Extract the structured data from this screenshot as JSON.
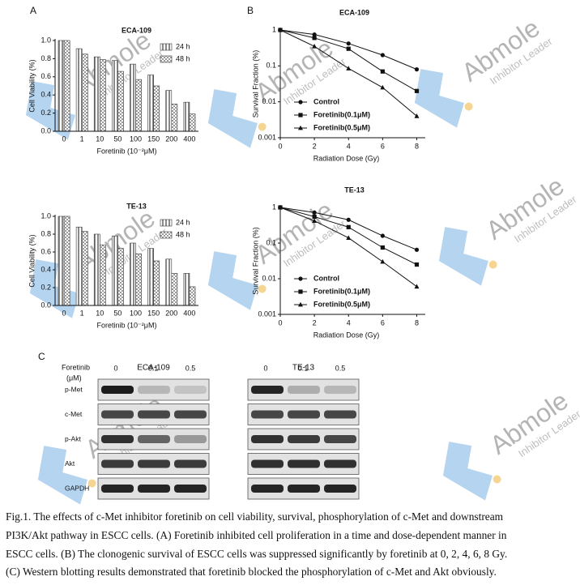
{
  "panels": [
    "A",
    "B",
    "C"
  ],
  "chart_data": [
    {
      "type": "bar",
      "title": "ECA-109",
      "x_label": "Foretinib (10⁻²μM)",
      "y_label": "Cell Viability (%)",
      "categories": [
        "0",
        "1",
        "10",
        "50",
        "100",
        "150",
        "200",
        "400"
      ],
      "series": [
        {
          "name": "24 h",
          "color": "#8a8a8a",
          "pattern": "stripes",
          "values": [
            1.0,
            0.91,
            0.82,
            0.78,
            0.74,
            0.62,
            0.45,
            0.32
          ]
        },
        {
          "name": "48 h",
          "color": "#9a9a9a",
          "pattern": "checks",
          "values": [
            1.0,
            0.85,
            0.79,
            0.66,
            0.57,
            0.5,
            0.3,
            0.19
          ]
        }
      ],
      "ylim": [
        0,
        1.0
      ],
      "yticks": [
        {
          "value": 0,
          "label": "0.0"
        },
        {
          "value": 0.2,
          "label": "0.2"
        },
        {
          "value": 0.4,
          "label": "0.4"
        },
        {
          "value": 0.6,
          "label": "0.6"
        },
        {
          "value": 0.8,
          "label": "0.8"
        },
        {
          "value": 1.0,
          "label": "1.0"
        }
      ],
      "legend": "top-right"
    },
    {
      "type": "line",
      "title": "ECA-109",
      "x_label": "Radiation Dose (Gy)",
      "y_label": "Survival Fraction (%)",
      "x": [
        0,
        2,
        4,
        6,
        8
      ],
      "xlim": [
        0,
        8.5
      ],
      "xticks": [
        0,
        2,
        4,
        6,
        8
      ],
      "ylim": [
        0.001,
        1
      ],
      "yticks": [
        0.001,
        0.01,
        0.1,
        1
      ],
      "log_y": true,
      "series": [
        {
          "name": "Control",
          "color": "#111111",
          "marker": "circle",
          "values": [
            1,
            0.75,
            0.42,
            0.2,
            0.08
          ]
        },
        {
          "name": "Foretinib(0.1μM)",
          "color": "#111111",
          "marker": "square",
          "values": [
            1,
            0.6,
            0.3,
            0.07,
            0.02
          ]
        },
        {
          "name": "Foretinib(0.5μM)",
          "color": "#111111",
          "marker": "triangle",
          "values": [
            1,
            0.35,
            0.085,
            0.025,
            0.004
          ]
        }
      ],
      "legend": "bottom-left"
    },
    {
      "type": "bar",
      "title": "TE-13",
      "x_label": "Foretinib (10⁻²μM)",
      "y_label": "Cell Viability (%)",
      "categories": [
        "0",
        "1",
        "10",
        "50",
        "100",
        "150",
        "200",
        "400"
      ],
      "series": [
        {
          "name": "24 h",
          "color": "#8a8a8a",
          "pattern": "stripes",
          "values": [
            1.0,
            0.88,
            0.8,
            0.78,
            0.7,
            0.64,
            0.52,
            0.36
          ]
        },
        {
          "name": "48 h",
          "color": "#9a9a9a",
          "pattern": "checks",
          "values": [
            1.0,
            0.83,
            0.68,
            0.64,
            0.58,
            0.5,
            0.36,
            0.21
          ]
        }
      ],
      "ylim": [
        0,
        1.0
      ],
      "yticks": [
        {
          "value": 0,
          "label": "0.0"
        },
        {
          "value": 0.2,
          "label": "0.2"
        },
        {
          "value": 0.4,
          "label": "0.4"
        },
        {
          "value": 0.6,
          "label": "0.6"
        },
        {
          "value": 0.8,
          "label": "0.8"
        },
        {
          "value": 1.0,
          "label": "1.0"
        }
      ],
      "legend": "top-right"
    },
    {
      "type": "line",
      "title": "TE-13",
      "x_label": "Radiation Dose (Gy)",
      "y_label": "Survival Fraction (%)",
      "x": [
        0,
        2,
        4,
        6,
        8
      ],
      "xlim": [
        0,
        8.5
      ],
      "xticks": [
        0,
        2,
        4,
        6,
        8
      ],
      "ylim": [
        0.001,
        1
      ],
      "yticks": [
        0.001,
        0.01,
        0.1,
        1
      ],
      "log_y": true,
      "series": [
        {
          "name": "Control",
          "color": "#111111",
          "marker": "circle",
          "values": [
            1,
            0.72,
            0.45,
            0.16,
            0.065
          ]
        },
        {
          "name": "Foretinib(0.1μM)",
          "color": "#111111",
          "marker": "square",
          "values": [
            1,
            0.55,
            0.28,
            0.075,
            0.025
          ]
        },
        {
          "name": "Foretinib(0.5μM)",
          "color": "#111111",
          "marker": "triangle",
          "values": [
            1,
            0.42,
            0.14,
            0.03,
            0.006
          ]
        }
      ],
      "legend": "bottom-left"
    }
  ],
  "blot": {
    "header": [
      "Foretinib",
      "(μM)"
    ],
    "cell_lines": [
      "ECA-109",
      "TE-13"
    ],
    "doses": [
      "0",
      "0.1",
      "0.5"
    ],
    "proteins": [
      "p-Met",
      "c-Met",
      "p-Akt",
      "Akt",
      "GAPDH"
    ]
  },
  "caption": [
    "Fig.1. The effects of c-Met inhibitor foretinib on cell viability, survival, phosphorylation of c-Met and downstream",
    "PI3K/Akt pathway in ESCC cells. (A) Foretinib inhibited cell proliferation in a time and dose-dependent manner in",
    "ESCC cells. (B) The clonogenic survival of ESCC cells was suppressed significantly by foretinib at 0, 2, 4, 6, 8 Gy.",
    "(C) Western blotting results demonstrated that foretinib blocked the phosphorylation of c-Met and Akt obviously."
  ],
  "watermark": {
    "brand": "Abmole",
    "tagline": "Inhibitor Leader"
  }
}
